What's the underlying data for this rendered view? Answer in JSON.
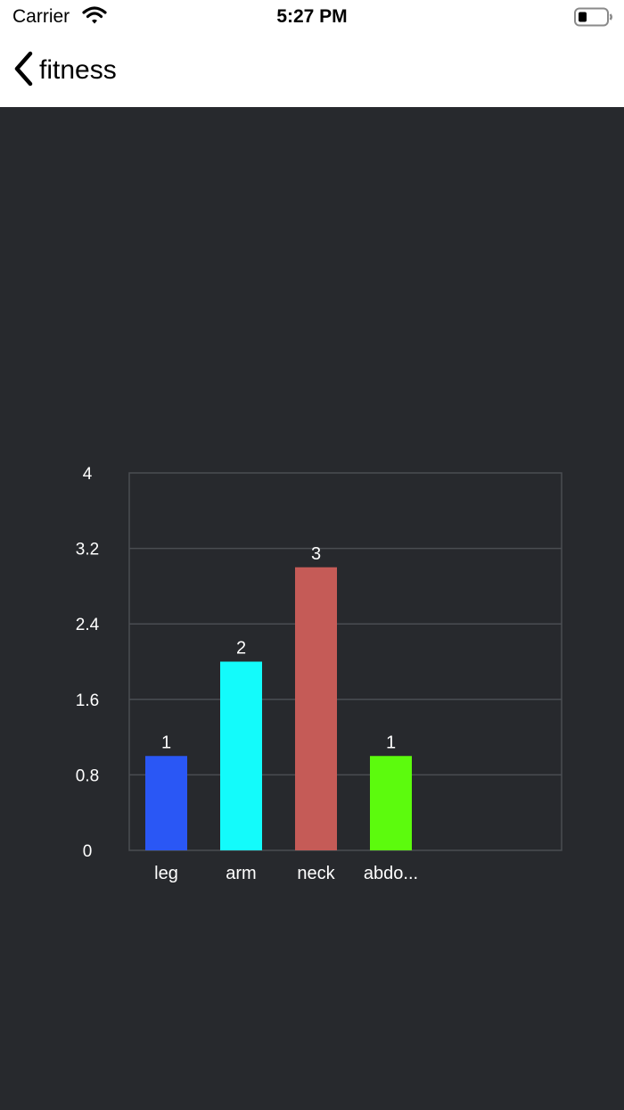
{
  "status_bar": {
    "carrier": "Carrier",
    "time": "5:27 PM"
  },
  "nav": {
    "back_label": "fitness"
  },
  "colors": {
    "background": "#27292d",
    "grid": "#4a4d52",
    "text": "#ffffff",
    "leg": "#2a57f5",
    "arm": "#13fbfb",
    "neck": "#c55b57",
    "abdomen": "#5cfb0d"
  },
  "chart_data": {
    "type": "bar",
    "categories": [
      "leg",
      "arm",
      "neck",
      "abdo..."
    ],
    "values": [
      1,
      2,
      3,
      1
    ],
    "data_labels": [
      "1",
      "2",
      "3",
      "1"
    ],
    "bar_colors": [
      "#2a57f5",
      "#13fbfb",
      "#c55b57",
      "#5cfb0d"
    ],
    "y_ticks": [
      "0",
      "0.8",
      "1.6",
      "2.4",
      "3.2",
      "4"
    ],
    "ylim": [
      0,
      4
    ],
    "slots": 6,
    "grid": true,
    "title": "",
    "xlabel": "",
    "ylabel": ""
  }
}
